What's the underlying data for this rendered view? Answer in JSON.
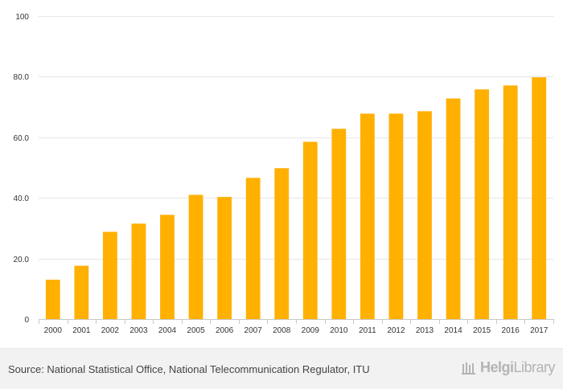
{
  "chart_data": {
    "type": "bar",
    "title": "",
    "xlabel": "",
    "ylabel": "",
    "ylim": [
      0,
      100
    ],
    "yticks": [
      {
        "value": 0,
        "label": "0"
      },
      {
        "value": 20,
        "label": "20.0"
      },
      {
        "value": 40,
        "label": "40.0"
      },
      {
        "value": 60,
        "label": "60.0"
      },
      {
        "value": 80,
        "label": "80.0"
      },
      {
        "value": 100,
        "label": "100"
      }
    ],
    "categories": [
      "2000",
      "2001",
      "2002",
      "2003",
      "2004",
      "2005",
      "2006",
      "2007",
      "2008",
      "2009",
      "2010",
      "2011",
      "2012",
      "2013",
      "2014",
      "2015",
      "2016",
      "2017"
    ],
    "series": [
      {
        "name": "",
        "color": "#ffb000",
        "values": [
          13.0,
          17.6,
          28.8,
          31.5,
          34.4,
          41.0,
          40.3,
          46.6,
          49.8,
          58.5,
          62.8,
          67.8,
          67.8,
          68.6,
          72.8,
          75.8,
          77.1,
          79.8
        ]
      }
    ]
  },
  "footer": {
    "source": "Source: National Statistical Office, National Telecommunication Regulator, ITU",
    "brand_bold": "Helgi",
    "brand_light": "Library",
    "brand_icon": "library-icon"
  }
}
